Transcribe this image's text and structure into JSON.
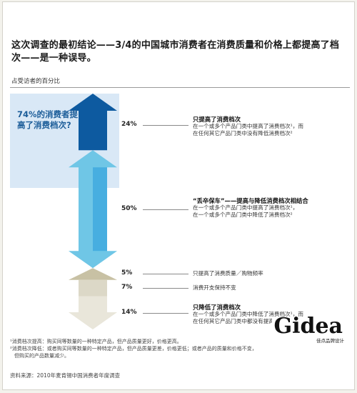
{
  "title": "这次调查的最初结论——3/4的中国城市消费者在消费质量和价格上都提高了档次——是一种误导。",
  "subtitle": "占受访者的百分比",
  "callout": "74%的消费者提高了消费档次?",
  "chart_data": {
    "type": "bar",
    "unit": "%",
    "categories": [
      "只提高了消费档次",
      "“丢卒保车”——提高与降低消费档次相结合",
      "只提高了消费质量／购物频率",
      "消费开支保持不变",
      "只降低了消费档次"
    ],
    "values": [
      24,
      50,
      5,
      7,
      14
    ],
    "labels": [
      "24%",
      "50%",
      "5%",
      "7%",
      "14%"
    ],
    "colors": [
      "#0d5aa0",
      "#6fc6e6",
      "#c8c1a4",
      "#dcd8c7",
      "#e9e6da"
    ],
    "highlight_total": 74
  },
  "categories": [
    {
      "title": "只提高了消费档次",
      "lines": [
        "在一个或多个产品门类中提高了消费档次¹，而",
        "在任何其它产品门类中没有降低消费档次²"
      ]
    },
    {
      "title": "“丢卒保车”——提高与降低消费档次相结合",
      "lines": [
        "在一个或多个产品门类中提高了消费档次¹，",
        "在一个或多个产品门类中降低了消费档次²"
      ]
    },
    {
      "title": "只提高了消费质量／购物频率",
      "lines": []
    },
    {
      "title": "消费开支保持不变",
      "lines": []
    },
    {
      "title": "只降低了消费档次",
      "lines": [
        "在一个或多个产品门类中降低了消费档次¹，而",
        "在任何其它产品门类中都没有提高消费档次²"
      ]
    }
  ],
  "footnotes": [
    "¹消费档次提高：购买同等数量的一种特定产品，但产品质量更好，价格更高。",
    "²消费档次降低：或者购买同等数量的一种特定产品，但产品质量更差，价格更低；或者产品的质量和价格不变，",
    "但购买的产品数量减少。"
  ],
  "source": "资料来源：2010年麦肯锡中国消费者年度调查",
  "logo": {
    "tag": "佳点品牌设计",
    "brand": "Gidea"
  }
}
